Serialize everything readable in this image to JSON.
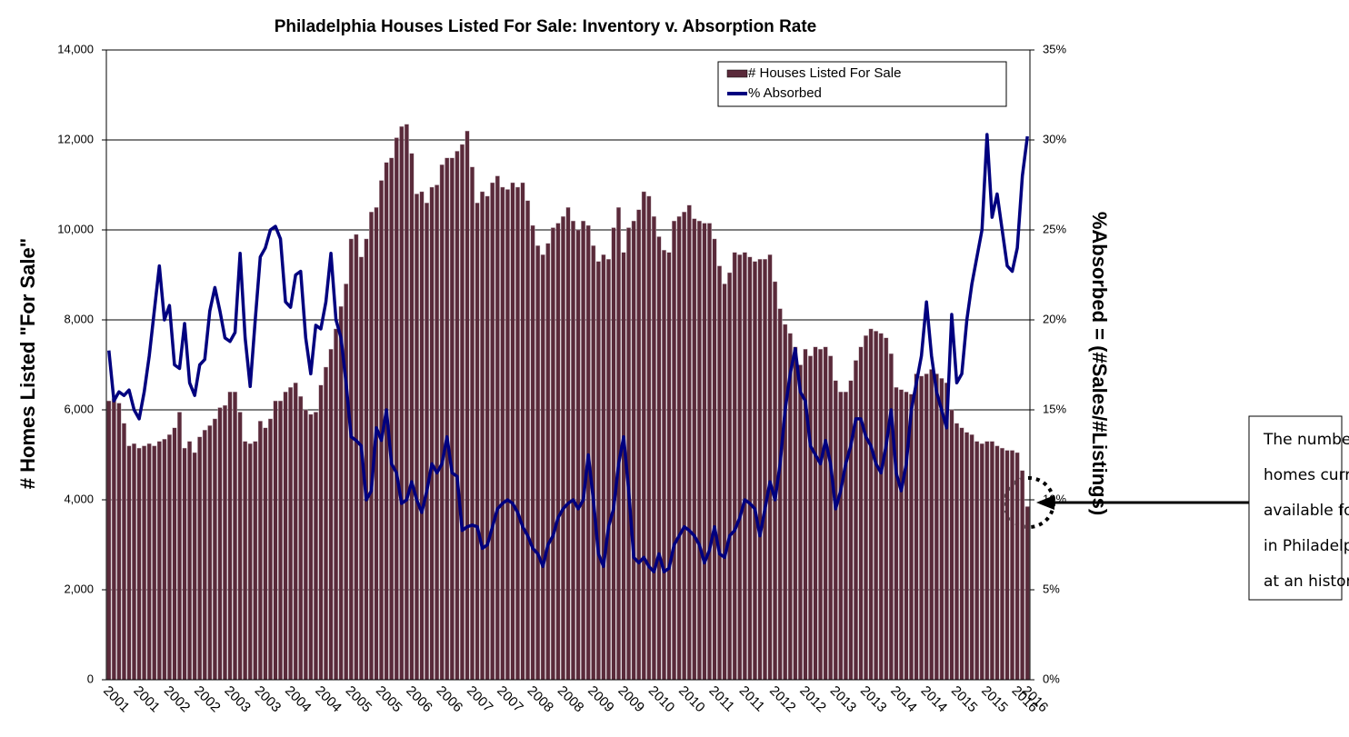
{
  "chart_data": {
    "type": "bar_line",
    "title": "Philadelphia Houses Listed For Sale: Inventory v. Absorption Rate",
    "y_label": "# Homes Listed \"For Sale\"",
    "y2_label": "%Absorbed = (#Sales/#Listings)",
    "categories": [
      "2001",
      null,
      null,
      null,
      null,
      null,
      "2001",
      null,
      null,
      null,
      null,
      null,
      "2002",
      null,
      null,
      null,
      null,
      null,
      "2002",
      null,
      null,
      null,
      null,
      null,
      "2003",
      null,
      null,
      null,
      null,
      null,
      "2003",
      null,
      null,
      null,
      null,
      null,
      "2004",
      null,
      null,
      null,
      null,
      null,
      "2004",
      null,
      null,
      null,
      null,
      null,
      "2005",
      null,
      null,
      null,
      null,
      null,
      "2005",
      null,
      null,
      null,
      null,
      null,
      "2006",
      null,
      null,
      null,
      null,
      null,
      "2006",
      null,
      null,
      null,
      null,
      null,
      "2007",
      null,
      null,
      null,
      null,
      null,
      "2007",
      null,
      null,
      null,
      null,
      null,
      "2008",
      null,
      null,
      null,
      null,
      null,
      "2008",
      null,
      null,
      null,
      null,
      null,
      "2009",
      null,
      null,
      null,
      null,
      null,
      "2009",
      null,
      null,
      null,
      null,
      null,
      "2010",
      null,
      null,
      null,
      null,
      null,
      "2010",
      null,
      null,
      null,
      null,
      null,
      "2011",
      null,
      null,
      null,
      null,
      null,
      "2011",
      null,
      null,
      null,
      null,
      null,
      "2012",
      null,
      null,
      null,
      null,
      null,
      "2012",
      null,
      null,
      null,
      null,
      null,
      "2013",
      null,
      null,
      null,
      null,
      null,
      "2013",
      null,
      null,
      null,
      null,
      null,
      "2014",
      null,
      null,
      null,
      null,
      null,
      "2014",
      null,
      null,
      null,
      null,
      null,
      "2015",
      null,
      null,
      null,
      null,
      null,
      "2015",
      null,
      null,
      null,
      null,
      null,
      "2016",
      null,
      "2016"
    ],
    "series": [
      {
        "name": "# Houses Listed For Sale",
        "color": "#5a2a3a",
        "axis": "y",
        "values": [
          6200,
          6250,
          6150,
          5700,
          5200,
          5250,
          5150,
          5200,
          5250,
          5200,
          5300,
          5350,
          5450,
          5600,
          5950,
          5150,
          5300,
          5050,
          5400,
          5550,
          5650,
          5800,
          6050,
          6100,
          6400,
          6400,
          5950,
          5300,
          5250,
          5300,
          5750,
          5600,
          5800,
          6200,
          6200,
          6400,
          6500,
          6600,
          6300,
          6000,
          5900,
          5950,
          6550,
          6950,
          7350,
          7800,
          8300,
          8800,
          9800,
          9900,
          9400,
          9800,
          10400,
          10500,
          11100,
          11500,
          11600,
          12050,
          12300,
          12350,
          11700,
          10800,
          10850,
          10600,
          10950,
          11000,
          11450,
          11600,
          11600,
          11750,
          11900,
          12200,
          11400,
          10600,
          10850,
          10750,
          11050,
          11200,
          10950,
          10900,
          11050,
          10950,
          11050,
          10650,
          10100,
          9650,
          9450,
          9700,
          10050,
          10150,
          10300,
          10500,
          10200,
          10000,
          10200,
          10100,
          9650,
          9300,
          9450,
          9350,
          10050,
          10500,
          9500,
          10050,
          10200,
          10450,
          10850,
          10750,
          10300,
          9850,
          9550,
          9500,
          10200,
          10300,
          10400,
          10550,
          10250,
          10200,
          10150,
          10150,
          9800,
          9200,
          8800,
          9050,
          9500,
          9450,
          9500,
          9400,
          9300,
          9350,
          9350,
          9450,
          8850,
          8250,
          7900,
          7700,
          7400,
          7000,
          7350,
          7200,
          7400,
          7350,
          7400,
          7200,
          6650,
          6400,
          6400,
          6650,
          7100,
          7400,
          7650,
          7800,
          7750,
          7700,
          7600,
          7250,
          6500,
          6450,
          6400,
          6350,
          6800,
          6750,
          6800,
          6900,
          6800,
          6700,
          6600,
          6000,
          5700,
          5600,
          5500,
          5450,
          5300,
          5250,
          5300,
          5300,
          5200,
          5150,
          5100,
          5100,
          5050,
          4650,
          3850
        ]
      },
      {
        "name": "% Absorbed",
        "color": "#00007f",
        "axis": "y2",
        "values": [
          18.3,
          15.5,
          16.0,
          15.8,
          16.1,
          15.0,
          14.5,
          16.0,
          18.0,
          20.5,
          23.0,
          20.0,
          20.8,
          17.5,
          17.3,
          19.8,
          16.5,
          15.8,
          17.5,
          17.8,
          20.5,
          21.8,
          20.5,
          19.0,
          18.8,
          19.3,
          23.7,
          19.0,
          16.3,
          20.0,
          23.5,
          24.0,
          25.0,
          25.2,
          24.5,
          21.0,
          20.7,
          22.5,
          22.7,
          19.0,
          17.0,
          19.7,
          19.5,
          21.0,
          23.7,
          20.0,
          19.0,
          16.5,
          13.5,
          13.3,
          13.0,
          10.0,
          10.5,
          14.0,
          13.3,
          15.0,
          12.0,
          11.5,
          9.8,
          10.0,
          11.0,
          10.0,
          9.3,
          10.5,
          12.0,
          11.5,
          12.0,
          13.5,
          11.5,
          11.3,
          8.3,
          8.5,
          8.6,
          8.5,
          7.3,
          7.5,
          8.5,
          9.5,
          9.8,
          10.0,
          9.8,
          9.3,
          8.5,
          8.0,
          7.3,
          7.0,
          6.3,
          7.5,
          8.0,
          9.0,
          9.5,
          9.8,
          10.0,
          9.5,
          10.0,
          12.5,
          10.0,
          7.0,
          6.3,
          8.5,
          9.5,
          12.0,
          13.5,
          10.5,
          6.8,
          6.5,
          6.8,
          6.3,
          6.0,
          7.0,
          6.0,
          6.2,
          7.5,
          8.0,
          8.5,
          8.3,
          8.0,
          7.5,
          6.5,
          7.2,
          8.5,
          7.0,
          6.8,
          8.0,
          8.3,
          9.0,
          10.0,
          9.8,
          9.5,
          8.0,
          9.5,
          11.0,
          10.0,
          12.0,
          15.0,
          17.0,
          18.4,
          16.0,
          15.5,
          13.0,
          12.5,
          12.0,
          13.3,
          12.0,
          9.5,
          10.5,
          12.0,
          13.0,
          14.5,
          14.5,
          13.5,
          13.0,
          12.0,
          11.5,
          13.0,
          15.0,
          11.5,
          10.5,
          12.0,
          15.0,
          16.5,
          18.0,
          21.0,
          18.0,
          16.0,
          15.0,
          14.0,
          20.3,
          16.5,
          17.0,
          20.0,
          22.0,
          23.5,
          25.0,
          30.3,
          25.7,
          27.0,
          25.0,
          23.0,
          22.7,
          24.0,
          28.0,
          30.2
        ]
      }
    ],
    "ylim": [
      0,
      14000
    ],
    "yticks": [
      0,
      {
        "value": 2000,
        "label": "2,000"
      },
      {
        "value": 4000,
        "label": "4,000"
      },
      {
        "value": 6000,
        "label": "6,000"
      },
      {
        "value": 8000,
        "label": "8,000"
      },
      {
        "value": 10000,
        "label": "10,000"
      },
      {
        "value": 12000,
        "label": "12,000"
      },
      {
        "value": 14000,
        "label": "14,000"
      }
    ],
    "y2lim": [
      0,
      35
    ],
    "y2ticks": [
      {
        "value": 0,
        "label": "0%"
      },
      {
        "value": 5,
        "label": "5%"
      },
      {
        "value": 10,
        "label": "10%"
      },
      {
        "value": 15,
        "label": "15%"
      },
      {
        "value": 20,
        "label": "20%"
      },
      {
        "value": 25,
        "label": "25%"
      },
      {
        "value": 30,
        "label": "30%"
      },
      {
        "value": 35,
        "label": "35%"
      }
    ],
    "grid": true,
    "legend": "top-right",
    "annotation": [
      "The number of",
      "homes currently",
      "available for sale",
      "in Philadelphia is",
      "at an historic low."
    ]
  }
}
